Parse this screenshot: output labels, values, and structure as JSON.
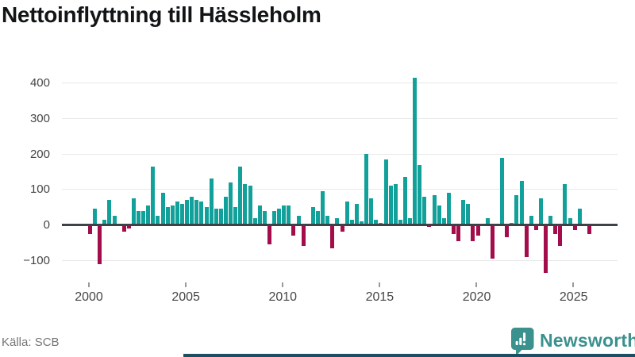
{
  "header": {
    "title": "Nettoinflyttning till Hässleholm"
  },
  "footer": {
    "source_label": "Källa: SCB",
    "brand": "Newsworthy"
  },
  "chart_data": {
    "type": "bar",
    "title": "Nettoinflyttning till Hässleholm",
    "frequency": "quarterly",
    "start_year": 2000,
    "start_quarter": 1,
    "end_year": 2025,
    "end_quarter": 4,
    "values": [
      -25,
      45,
      -110,
      15,
      70,
      25,
      0,
      -20,
      -10,
      75,
      40,
      40,
      55,
      165,
      25,
      90,
      50,
      55,
      65,
      60,
      70,
      80,
      70,
      65,
      50,
      130,
      45,
      45,
      80,
      120,
      50,
      165,
      115,
      110,
      20,
      55,
      40,
      -55,
      40,
      45,
      55,
      55,
      -30,
      25,
      -60,
      0,
      50,
      40,
      95,
      25,
      -65,
      20,
      -20,
      65,
      15,
      60,
      10,
      200,
      75,
      15,
      5,
      185,
      110,
      115,
      15,
      135,
      20,
      415,
      170,
      80,
      -5,
      85,
      55,
      20,
      90,
      -25,
      -45,
      70,
      60,
      -45,
      -30,
      0,
      20,
      -95,
      0,
      190,
      -35,
      5,
      85,
      125,
      -90,
      25,
      -15,
      75,
      -135,
      25,
      -25,
      -60,
      115,
      20,
      -15,
      45,
      0,
      -25
    ],
    "y_ticks": [
      400,
      300,
      200,
      100,
      0,
      -100
    ],
    "y_tick_labels": [
      "400",
      "300",
      "200",
      "100",
      "0",
      "−100"
    ],
    "x_ticks": [
      2000,
      2005,
      2010,
      2015,
      2020,
      2025
    ],
    "x_tick_labels": [
      "2000",
      "2005",
      "2010",
      "2015",
      "2020",
      "2025"
    ],
    "ylim": [
      -160,
      430
    ],
    "grid": "horizontal",
    "legend": "none",
    "colors": {
      "positive": "#12a19a",
      "negative": "#a30d4b",
      "axis": "#3b4349",
      "gridline": "#e8e8e8",
      "brand_teal": "#3a918e",
      "bottom_strip": "#1d4e61"
    },
    "source": "SCB"
  }
}
